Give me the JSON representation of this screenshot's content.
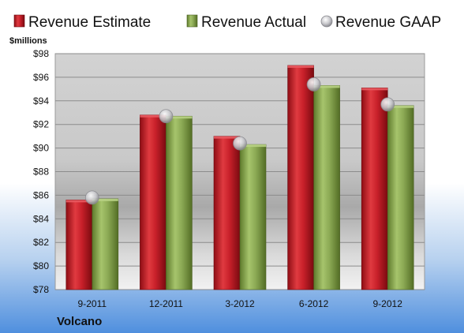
{
  "chart_data": {
    "type": "bar",
    "unit_label": "$millions",
    "brand": "Volcano",
    "categories": [
      "9-2011",
      "12-2011",
      "3-2012",
      "6-2012",
      "9-2012"
    ],
    "ylim": [
      78,
      98
    ],
    "yticks": [
      "$78",
      "$80",
      "$82",
      "$84",
      "$86",
      "$88",
      "$90",
      "$92",
      "$94",
      "$96",
      "$98"
    ],
    "ytick_values": [
      78,
      80,
      82,
      84,
      86,
      88,
      90,
      92,
      94,
      96,
      98
    ],
    "grid": true,
    "legend_position": "top",
    "series": [
      {
        "name": "Revenue Estimate",
        "kind": "bar",
        "color": "#c8202a",
        "values": [
          85.6,
          92.8,
          91.0,
          97.0,
          95.1
        ]
      },
      {
        "name": "Revenue Actual",
        "kind": "bar",
        "color": "#8caa55",
        "values": [
          85.7,
          92.7,
          90.3,
          95.3,
          93.6
        ]
      },
      {
        "name": "Revenue GAAP",
        "kind": "marker",
        "color": "#c8c8cc",
        "values": [
          85.8,
          92.7,
          90.4,
          95.4,
          93.7
        ]
      }
    ]
  }
}
